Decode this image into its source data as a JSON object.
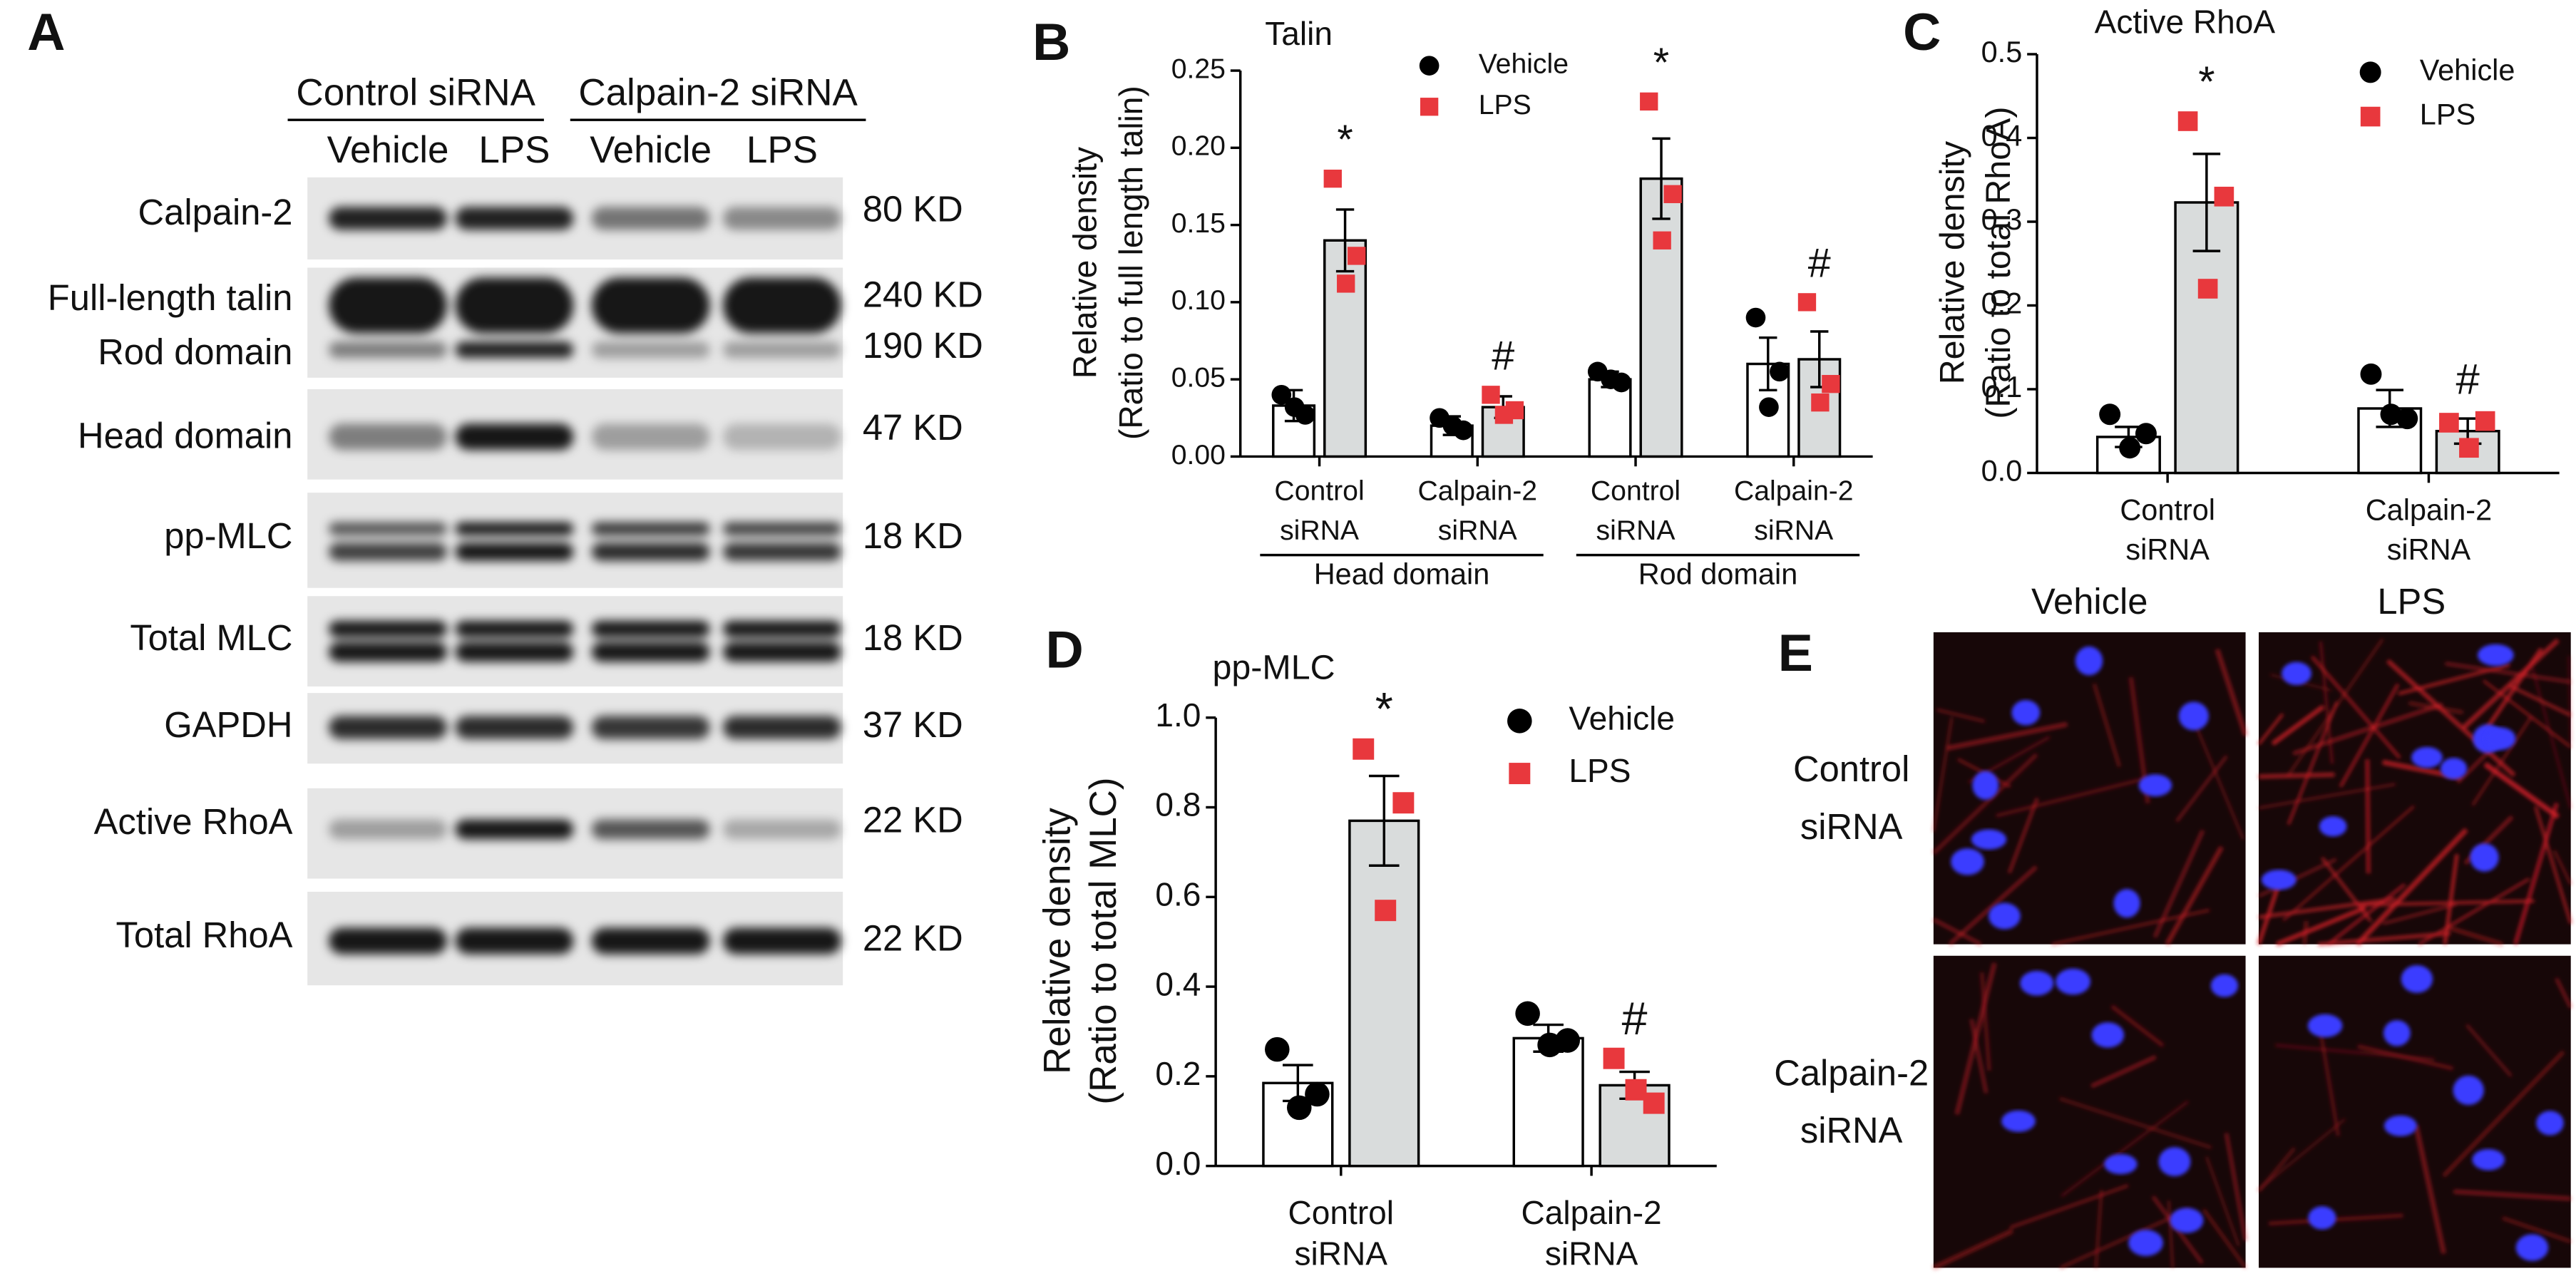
{
  "panel_a": {
    "letter": "A",
    "conditions": [
      "Control siRNA",
      "Calpain-2 siRNA"
    ],
    "treatments": [
      "Vehicle",
      "LPS",
      "Vehicle",
      "LPS"
    ],
    "rows": [
      {
        "labels": [
          "Calpain-2"
        ],
        "weights": [
          "80 KD"
        ]
      },
      {
        "labels": [
          "Full-length talin",
          "Rod domain"
        ],
        "weights": [
          "240 KD",
          "190 KD"
        ]
      },
      {
        "labels": [
          "Head domain"
        ],
        "weights": [
          "47 KD"
        ]
      },
      {
        "labels": [
          "pp-MLC"
        ],
        "weights": [
          "18 KD"
        ]
      },
      {
        "labels": [
          "Total MLC"
        ],
        "weights": [
          "18 KD"
        ]
      },
      {
        "labels": [
          "GAPDH"
        ],
        "weights": [
          "37 KD"
        ]
      },
      {
        "labels": [
          "Active RhoA"
        ],
        "weights": [
          "22 KD"
        ]
      },
      {
        "labels": [
          "Total RhoA"
        ],
        "weights": [
          "22 KD"
        ]
      }
    ]
  },
  "chart_data": [
    {
      "type": "bar",
      "panel": "B",
      "title": "Talin",
      "ylabel": [
        "Relative density",
        "(Ratio to full length talin)"
      ],
      "categories": [
        [
          "Control",
          "siRNA"
        ],
        [
          "Calpain-2",
          "siRNA"
        ],
        [
          "Control",
          "siRNA"
        ],
        [
          "Calpain-2",
          "siRNA"
        ]
      ],
      "groups": [
        "Head domain",
        "Rod domain"
      ],
      "ylim": [
        0,
        0.25
      ],
      "yticks": [
        {
          "value": 0,
          "label": "0.00"
        },
        0.05,
        {
          "value": 0.1,
          "label": "0.10"
        },
        0.15,
        {
          "value": 0.2,
          "label": "0.20"
        },
        0.25
      ],
      "series": [
        {
          "name": "Vehicle",
          "color": "#ffffff",
          "point_color": "#000000",
          "marker": "circle",
          "values": [
            0.033,
            0.02,
            0.05,
            0.06
          ],
          "errors": [
            0.01,
            0.006,
            0.005,
            0.017
          ],
          "points": [
            [
              0.04,
              0.027,
              0.032
            ],
            [
              0.025,
              0.017,
              0.02
            ],
            [
              0.055,
              0.048,
              0.05
            ],
            [
              0.09,
              0.055,
              0.032
            ]
          ]
        },
        {
          "name": "LPS",
          "color": "#d9dcdc",
          "point_color": "#e8383d",
          "marker": "square",
          "values": [
            0.14,
            0.032,
            0.18,
            0.063
          ],
          "errors": [
            0.02,
            0.007,
            0.026,
            0.018
          ],
          "points": [
            [
              0.18,
              0.13,
              0.112
            ],
            [
              0.04,
              0.03,
              0.027
            ],
            [
              0.23,
              0.17,
              0.14
            ],
            [
              0.1,
              0.047,
              0.035
            ]
          ],
          "annotations": [
            "*",
            "#",
            "*",
            "#"
          ]
        }
      ]
    },
    {
      "type": "bar",
      "panel": "C",
      "title": "Active RhoA",
      "ylabel": [
        "Relative density",
        "(Ratio to total RhoA)"
      ],
      "categories": [
        [
          "Control",
          "siRNA"
        ],
        [
          "Calpain-2",
          "siRNA"
        ]
      ],
      "ylim": [
        0,
        0.5
      ],
      "yticks": [
        {
          "value": 0,
          "label": "0.0"
        },
        0.1,
        0.2,
        0.3,
        0.4,
        0.5
      ],
      "series": [
        {
          "name": "Vehicle",
          "color": "#ffffff",
          "point_color": "#000000",
          "marker": "circle",
          "values": [
            0.043,
            0.077
          ],
          "errors": [
            0.012,
            0.022
          ],
          "points": [
            [
              0.07,
              0.047,
              0.03
            ],
            [
              0.118,
              0.065,
              0.07
            ]
          ]
        },
        {
          "name": "LPS",
          "color": "#d9dcdc",
          "point_color": "#e8383d",
          "marker": "square",
          "values": [
            0.323,
            0.05
          ],
          "errors": [
            0.058,
            0.015
          ],
          "points": [
            [
              0.42,
              0.33,
              0.22
            ],
            [
              0.06,
              0.062,
              0.03
            ]
          ],
          "annotations": [
            "*",
            "#"
          ]
        }
      ]
    },
    {
      "type": "bar",
      "panel": "D",
      "title": "pp-MLC",
      "ylabel": [
        "Relative density",
        "(Ratio to total MLC)"
      ],
      "categories": [
        [
          "Control",
          "siRNA"
        ],
        [
          "Calpain-2",
          "siRNA"
        ]
      ],
      "ylim": [
        0,
        1.0
      ],
      "yticks": [
        {
          "value": 0,
          "label": "0.0"
        },
        0.2,
        0.4,
        0.6,
        0.8,
        {
          "value": 1.0,
          "label": "1.0"
        }
      ],
      "series": [
        {
          "name": "Vehicle",
          "color": "#ffffff",
          "point_color": "#000000",
          "marker": "circle",
          "values": [
            0.185,
            0.285
          ],
          "errors": [
            0.04,
            0.03
          ],
          "points": [
            [
              0.26,
              0.16,
              0.13
            ],
            [
              0.34,
              0.28,
              0.27
            ]
          ]
        },
        {
          "name": "LPS",
          "color": "#d9dcdc",
          "point_color": "#e8383d",
          "marker": "square",
          "values": [
            0.77,
            0.18
          ],
          "errors": [
            0.1,
            0.03
          ],
          "points": [
            [
              0.93,
              0.81,
              0.57
            ],
            [
              0.24,
              0.14,
              0.17
            ]
          ],
          "annotations": [
            "*",
            "#"
          ]
        }
      ]
    }
  ],
  "panel_e": {
    "letter": "E",
    "columns": [
      "Vehicle",
      "LPS"
    ],
    "rows": [
      [
        "Control",
        "siRNA"
      ],
      [
        "Calpain-2",
        "siRNA"
      ]
    ]
  }
}
